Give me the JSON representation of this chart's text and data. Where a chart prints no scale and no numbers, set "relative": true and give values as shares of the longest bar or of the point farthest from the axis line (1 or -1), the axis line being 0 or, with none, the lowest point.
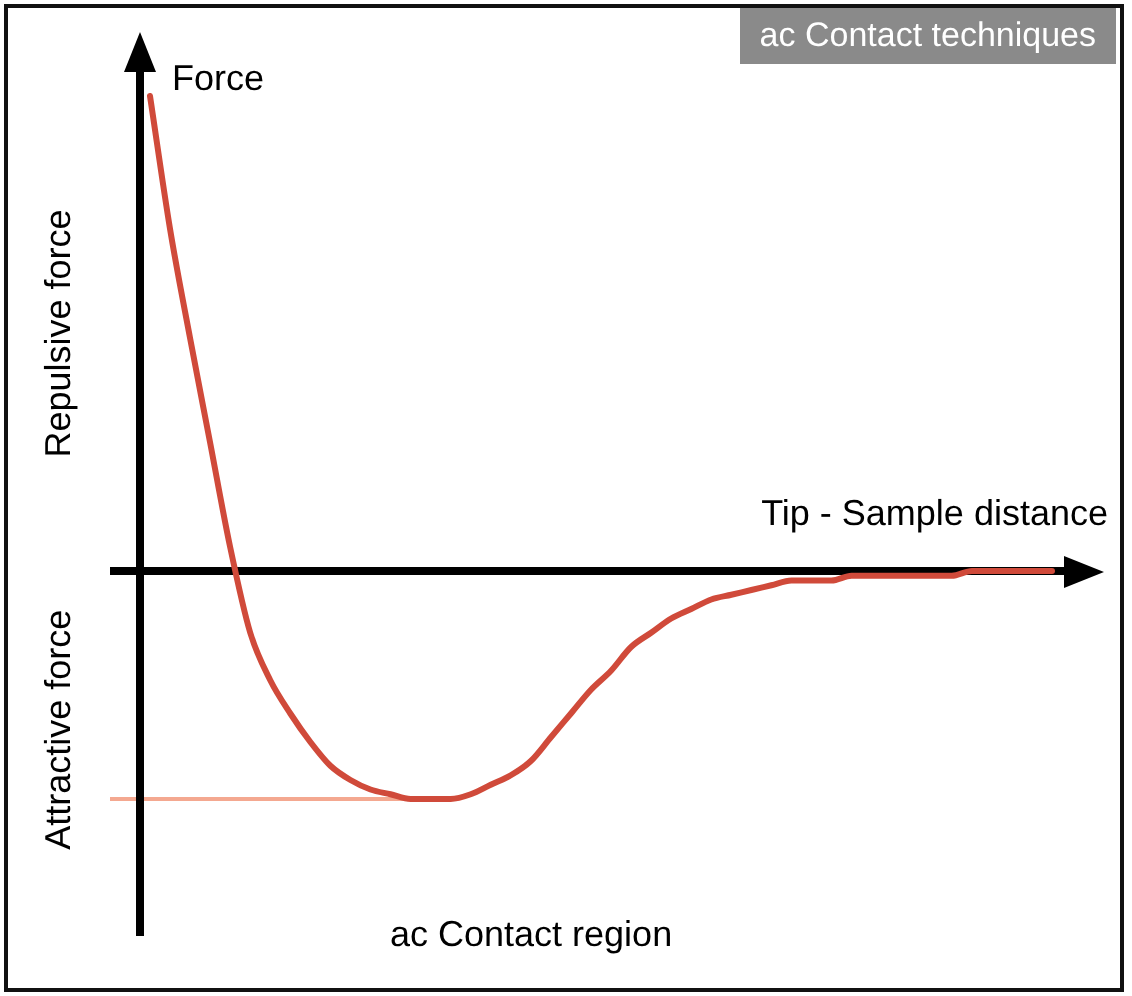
{
  "chart_data": {
    "type": "line",
    "title": "ac Contact techniques",
    "ylabel": "Force",
    "xlabel": "Tip - Sample distance",
    "annotations": [
      "Repulsive force",
      "Attractive force",
      "ac Contact region"
    ],
    "relative": true,
    "marker": "none",
    "legend": false,
    "categories": [
      null,
      null,
      null,
      null,
      null,
      null,
      null,
      null,
      null,
      null,
      null,
      null,
      null,
      null,
      null,
      null,
      null,
      null,
      null,
      null,
      null,
      null,
      null,
      null,
      null,
      null,
      null,
      null,
      null,
      null,
      null,
      null,
      null,
      null,
      null,
      null,
      null,
      null,
      null,
      null,
      null,
      null,
      null,
      null,
      null,
      null
    ],
    "series": [
      {
        "color": "#d04a3a",
        "values": [
          1,
          0.72,
          0.49,
          0.27,
          0.05,
          -0.13,
          -0.23,
          -0.3,
          -0.36,
          -0.41,
          -0.44,
          -0.46,
          -0.47,
          -0.48,
          -0.48,
          -0.48,
          -0.47,
          -0.45,
          -0.43,
          -0.4,
          -0.35,
          -0.3,
          -0.25,
          -0.21,
          -0.16,
          -0.13,
          -0.1,
          -0.08,
          -0.06,
          -0.05,
          -0.04,
          -0.03,
          -0.02,
          -0.02,
          -0.02,
          -0.01,
          -0.01,
          -0.01,
          -0.01,
          -0.01,
          -0.01,
          0,
          0,
          0,
          0,
          0
        ]
      }
    ],
    "ref_lines": [
      {
        "axis": "y",
        "value": -0.48,
        "color": "#f4a890"
      }
    ]
  }
}
